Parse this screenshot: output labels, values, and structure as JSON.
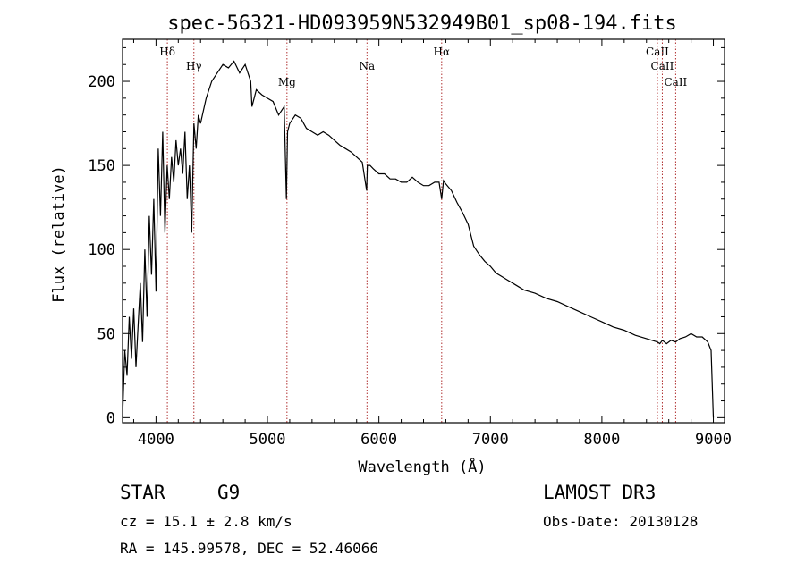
{
  "chart_data": {
    "type": "line",
    "title": "spec-56321-HD093959N532949B01_sp08-194.fits",
    "xlabel": "Wavelength (Å)",
    "ylabel": "Flux (relative)",
    "xlim": [
      3700,
      9100
    ],
    "ylim": [
      -3,
      225
    ],
    "xticks": [
      4000,
      5000,
      6000,
      7000,
      8000,
      9000
    ],
    "yticks": [
      0,
      50,
      100,
      150,
      200
    ],
    "series": [
      {
        "name": "flux",
        "x": [
          3700,
          3720,
          3740,
          3760,
          3780,
          3800,
          3820,
          3840,
          3860,
          3880,
          3900,
          3920,
          3940,
          3960,
          3980,
          4000,
          4020,
          4040,
          4060,
          4080,
          4100,
          4120,
          4140,
          4160,
          4180,
          4200,
          4220,
          4240,
          4260,
          4280,
          4300,
          4320,
          4340,
          4360,
          4380,
          4400,
          4450,
          4500,
          4550,
          4600,
          4650,
          4700,
          4750,
          4800,
          4850,
          4861,
          4900,
          4950,
          5000,
          5050,
          5100,
          5150,
          5170,
          5180,
          5200,
          5250,
          5300,
          5350,
          5400,
          5450,
          5500,
          5550,
          5600,
          5650,
          5700,
          5750,
          5800,
          5850,
          5890,
          5896,
          5920,
          5950,
          6000,
          6050,
          6100,
          6150,
          6200,
          6250,
          6300,
          6350,
          6400,
          6450,
          6500,
          6540,
          6563,
          6580,
          6600,
          6650,
          6700,
          6750,
          6800,
          6850,
          6900,
          6950,
          7000,
          7050,
          7100,
          7150,
          7200,
          7300,
          7400,
          7500,
          7600,
          7700,
          7800,
          7900,
          8000,
          8100,
          8200,
          8300,
          8400,
          8498,
          8520,
          8542,
          8580,
          8620,
          8662,
          8700,
          8750,
          8800,
          8850,
          8900,
          8950,
          8980,
          9000
        ],
        "y": [
          0,
          40,
          25,
          60,
          35,
          65,
          30,
          55,
          80,
          45,
          100,
          60,
          120,
          85,
          130,
          75,
          160,
          120,
          170,
          110,
          150,
          130,
          155,
          140,
          165,
          150,
          160,
          145,
          170,
          130,
          150,
          110,
          175,
          160,
          180,
          175,
          190,
          200,
          205,
          210,
          208,
          212,
          205,
          210,
          200,
          185,
          195,
          192,
          190,
          188,
          180,
          185,
          130,
          170,
          175,
          180,
          178,
          172,
          170,
          168,
          170,
          168,
          165,
          162,
          160,
          158,
          155,
          152,
          135,
          150,
          150,
          148,
          145,
          145,
          142,
          142,
          140,
          140,
          143,
          140,
          138,
          138,
          140,
          140,
          130,
          141,
          139,
          135,
          128,
          122,
          115,
          102,
          97,
          93,
          90,
          86,
          84,
          82,
          80,
          76,
          74,
          71,
          69,
          66,
          63,
          60,
          57,
          54,
          52,
          49,
          47,
          45,
          44,
          46,
          44,
          46,
          45,
          47,
          48,
          50,
          48,
          48,
          45,
          40,
          0
        ]
      }
    ],
    "spectral_lines": [
      {
        "name": "Hδ",
        "wavelength": 4102,
        "row": 1
      },
      {
        "name": "Hγ",
        "wavelength": 4340,
        "row": 2
      },
      {
        "name": "Mg",
        "wavelength": 5175,
        "row": 3
      },
      {
        "name": "Na",
        "wavelength": 5893,
        "row": 2
      },
      {
        "name": "Hα",
        "wavelength": 6563,
        "row": 1
      },
      {
        "name": "CaII",
        "wavelength": 8498,
        "row": 1
      },
      {
        "name": "CaII",
        "wavelength": 8542,
        "row": 2
      },
      {
        "name": "CaII",
        "wavelength": 8662,
        "row": 3
      }
    ]
  },
  "info": {
    "class": "STAR",
    "subclass": "G9",
    "survey": "LAMOST DR3",
    "cz": "cz = 15.1 ± 2.8 km/s",
    "obs_date": "Obs-Date: 20130128",
    "coords": "RA = 145.99578, DEC =  52.46066"
  },
  "colors": {
    "line_marker": "#b03030",
    "spectrum": "#000000"
  }
}
